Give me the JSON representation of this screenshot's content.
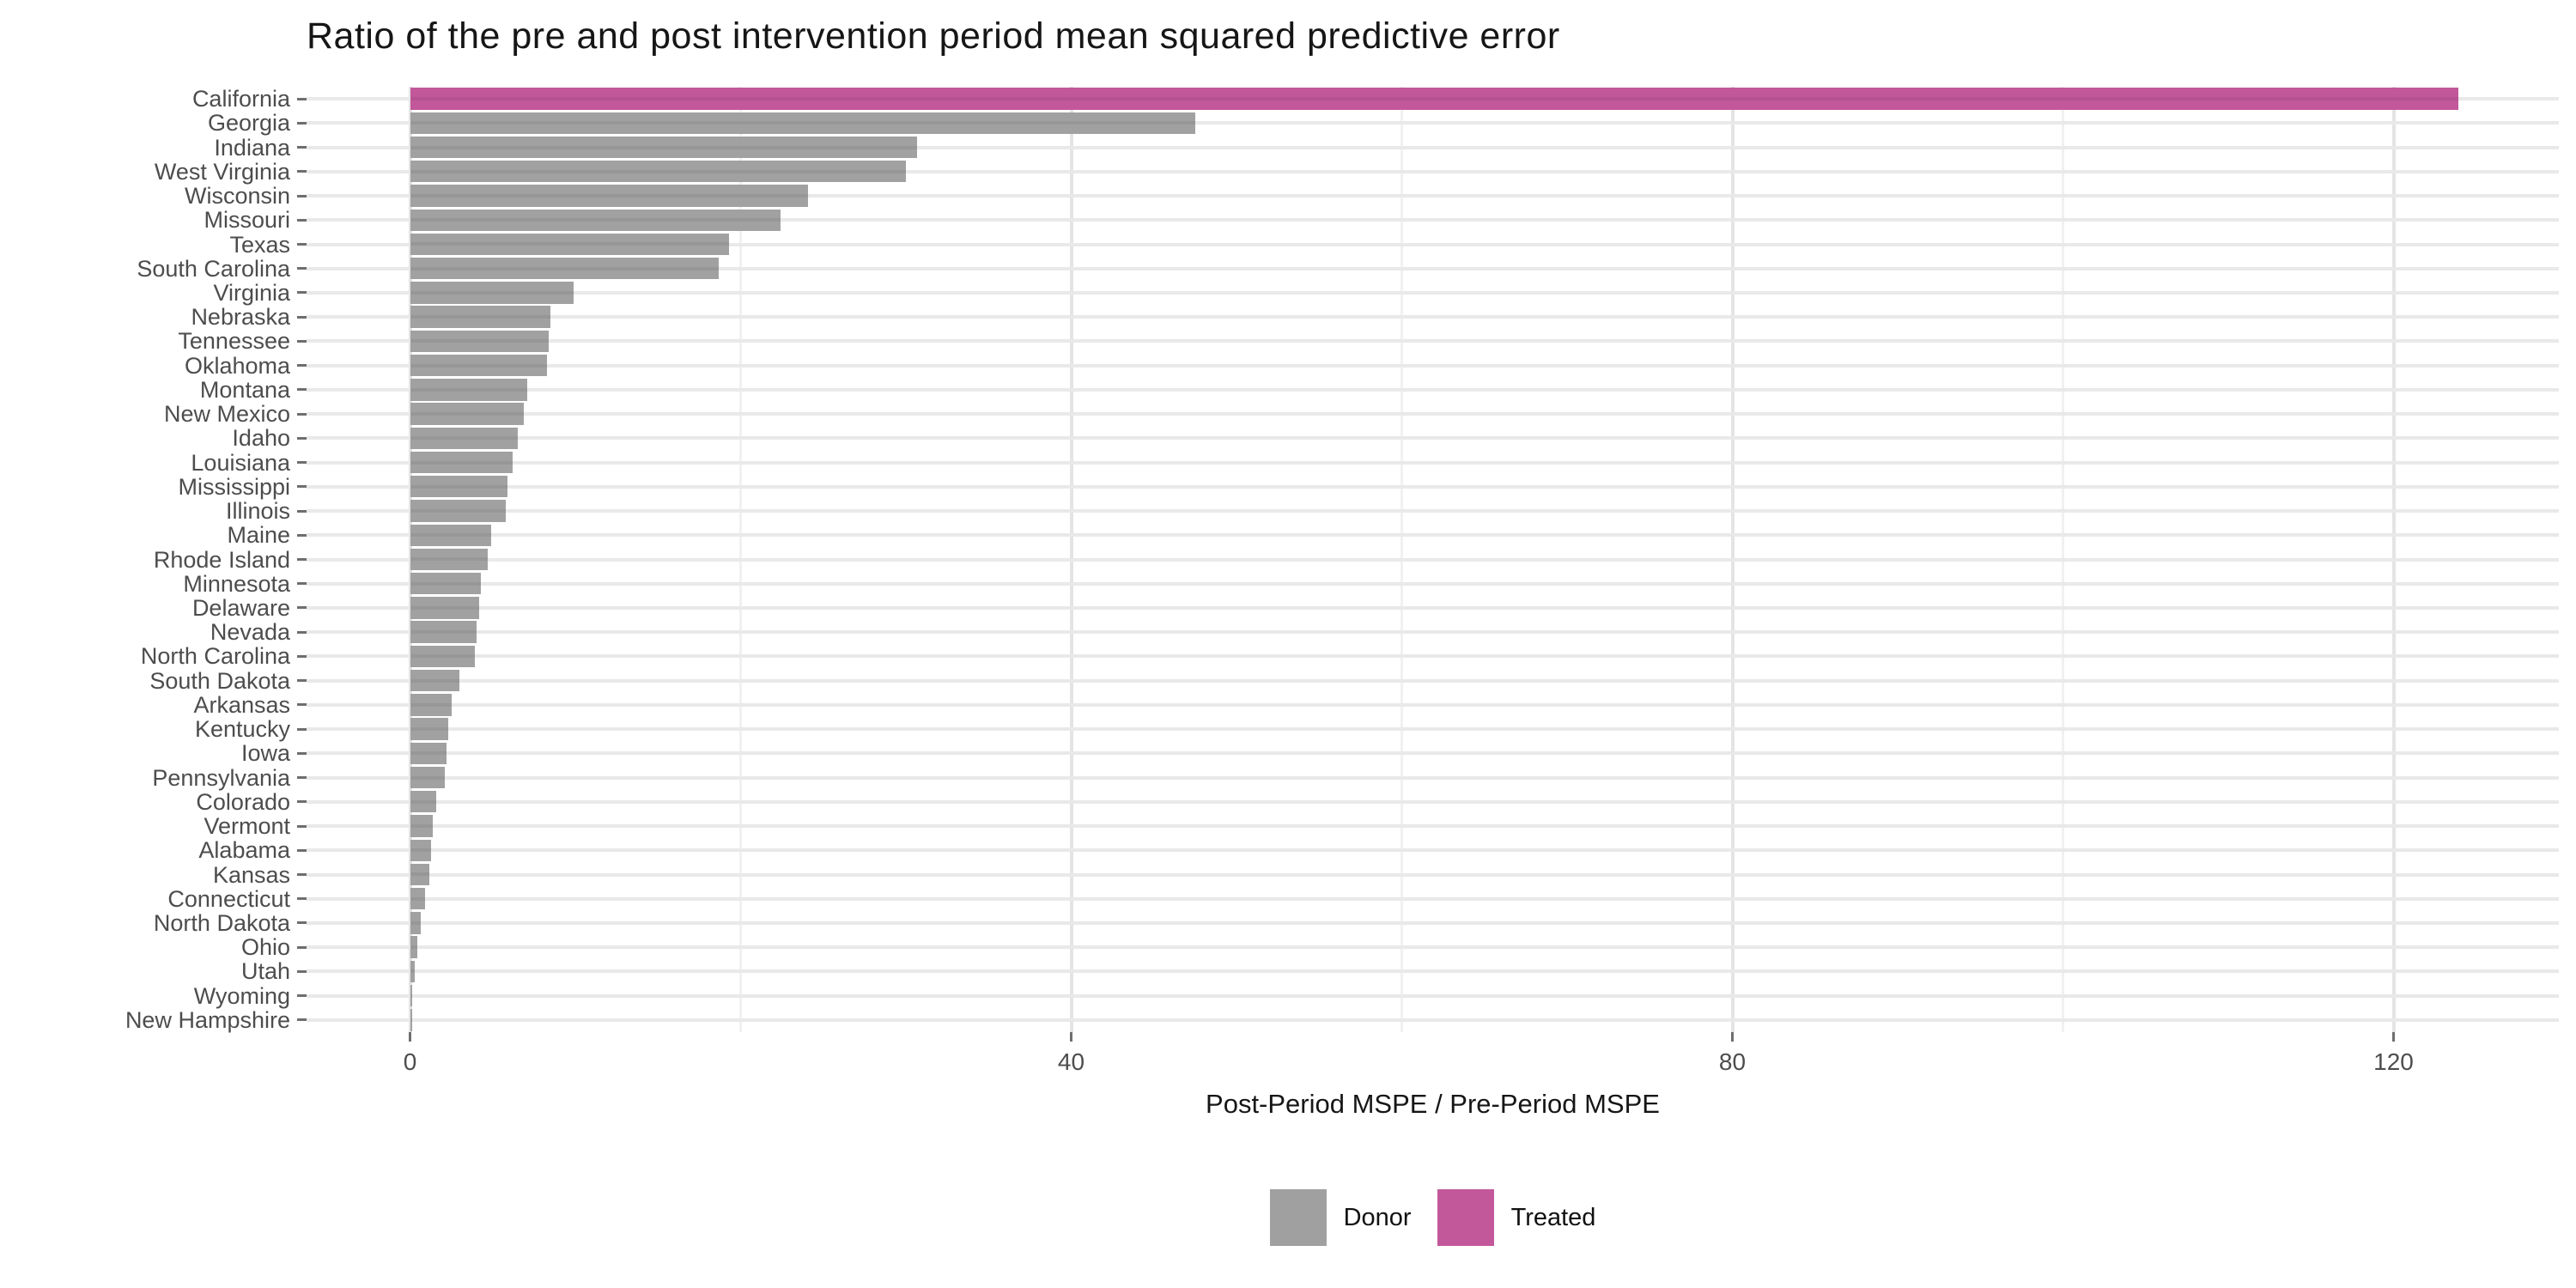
{
  "title": "Ratio of the pre and post intervention period mean squared predictive error",
  "x_axis": {
    "label": "Post-Period MSPE / Pre-Period MSPE",
    "ticks": [
      0,
      40,
      80,
      120
    ],
    "minor_gridlines": [
      20,
      60,
      100
    ]
  },
  "legend": {
    "items": [
      {
        "label": "Donor",
        "color": "#A0A0A0"
      },
      {
        "label": "Treated",
        "color": "#C2589A"
      }
    ]
  },
  "chart_data": {
    "type": "bar",
    "orientation": "horizontal",
    "title": "Ratio of the pre and post intervention period mean squared predictive error",
    "xlabel": "Post-Period MSPE / Pre-Period MSPE",
    "ylabel": "",
    "xlim": [
      0,
      130
    ],
    "grid": true,
    "legend_position": "bottom",
    "categories": [
      "California",
      "Georgia",
      "Indiana",
      "West Virginia",
      "Wisconsin",
      "Missouri",
      "Texas",
      "South Carolina",
      "Virginia",
      "Nebraska",
      "Tennessee",
      "Oklahoma",
      "Montana",
      "New Mexico",
      "Idaho",
      "Louisiana",
      "Mississippi",
      "Illinois",
      "Maine",
      "Rhode Island",
      "Minnesota",
      "Delaware",
      "Nevada",
      "North Carolina",
      "South Dakota",
      "Arkansas",
      "Kentucky",
      "Iowa",
      "Pennsylvania",
      "Colorado",
      "Vermont",
      "Alabama",
      "Kansas",
      "Connecticut",
      "North Dakota",
      "Ohio",
      "Utah",
      "Wyoming",
      "New Hampshire"
    ],
    "values": [
      123.9,
      47.5,
      30.7,
      30.0,
      24.1,
      22.4,
      19.3,
      18.7,
      9.9,
      8.5,
      8.4,
      8.3,
      7.1,
      6.9,
      6.5,
      6.2,
      5.9,
      5.8,
      4.9,
      4.7,
      4.3,
      4.2,
      4.0,
      3.9,
      3.0,
      2.5,
      2.3,
      2.2,
      2.1,
      1.6,
      1.4,
      1.25,
      1.15,
      0.9,
      0.65,
      0.45,
      0.3,
      0.15,
      0.05
    ],
    "groups": [
      "Treated",
      "Donor",
      "Donor",
      "Donor",
      "Donor",
      "Donor",
      "Donor",
      "Donor",
      "Donor",
      "Donor",
      "Donor",
      "Donor",
      "Donor",
      "Donor",
      "Donor",
      "Donor",
      "Donor",
      "Donor",
      "Donor",
      "Donor",
      "Donor",
      "Donor",
      "Donor",
      "Donor",
      "Donor",
      "Donor",
      "Donor",
      "Donor",
      "Donor",
      "Donor",
      "Donor",
      "Donor",
      "Donor",
      "Donor",
      "Donor",
      "Donor",
      "Donor",
      "Donor",
      "Donor"
    ],
    "colors": {
      "Donor": "#A1A1A1",
      "Treated": "#C2589A"
    }
  }
}
